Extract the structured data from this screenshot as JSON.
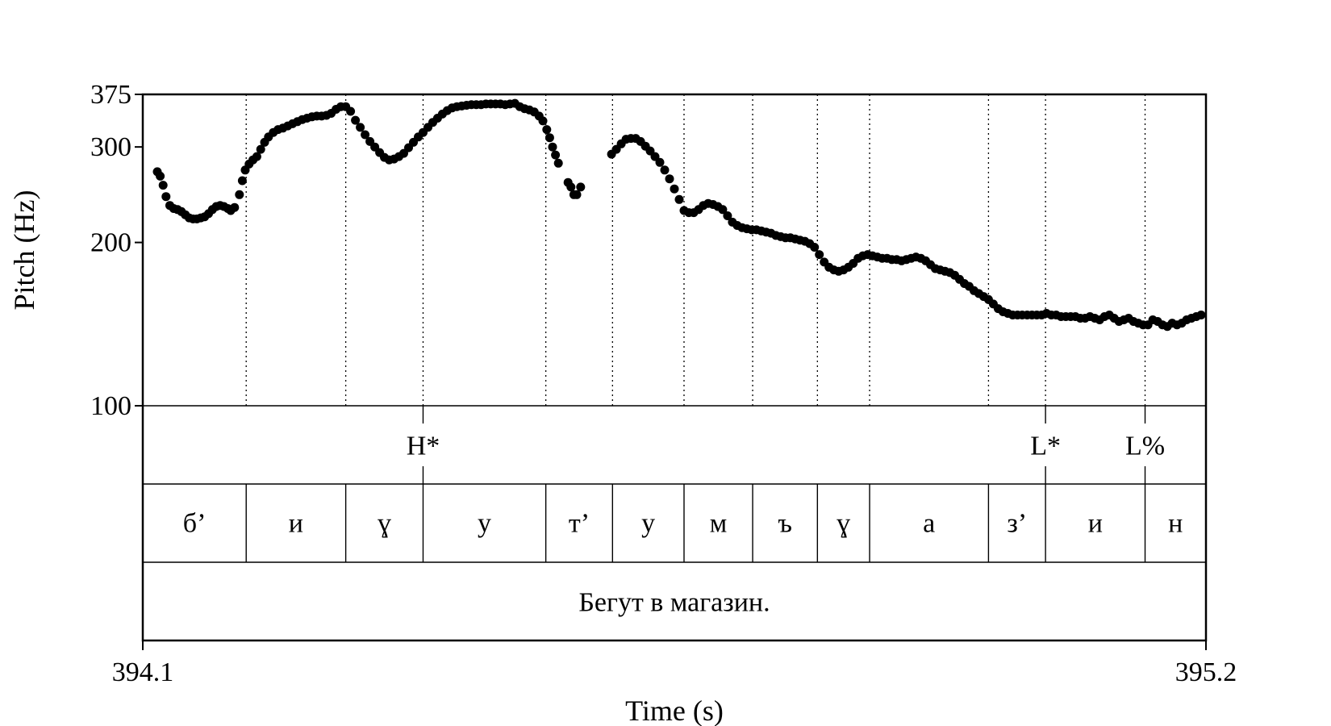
{
  "chart_data": {
    "type": "scatter",
    "xlabel": "Time (s)",
    "ylabel": "Pitch (Hz)",
    "xlim": [
      394.1,
      395.2
    ],
    "ylim": [
      100,
      375
    ],
    "y_scale": "log",
    "x_ticks": [
      "394.1",
      "395.2"
    ],
    "y_ticks": [
      {
        "value": 100,
        "label": "100"
      },
      {
        "value": 200,
        "label": "200"
      },
      {
        "value": 300,
        "label": "300"
      },
      {
        "value": 375,
        "label": "375"
      }
    ],
    "boundaries": [
      394.207,
      394.31,
      394.39,
      394.517,
      394.586,
      394.66,
      394.731,
      394.798,
      394.852,
      394.975,
      395.034,
      395.137
    ],
    "tones": [
      {
        "label": "H*",
        "time": 394.39
      },
      {
        "label": "L*",
        "time": 395.034
      },
      {
        "label": "L%",
        "time": 395.137
      }
    ],
    "phones": [
      {
        "label": "б’",
        "start": 394.1,
        "end": 394.207
      },
      {
        "label": "и",
        "start": 394.207,
        "end": 394.31
      },
      {
        "label": "ɣ",
        "start": 394.31,
        "end": 394.39
      },
      {
        "label": "у",
        "start": 394.39,
        "end": 394.517
      },
      {
        "label": "т’",
        "start": 394.517,
        "end": 394.586
      },
      {
        "label": "у",
        "start": 394.586,
        "end": 394.66
      },
      {
        "label": "м",
        "start": 394.66,
        "end": 394.731
      },
      {
        "label": "ъ",
        "start": 394.731,
        "end": 394.798
      },
      {
        "label": "ɣ",
        "start": 394.798,
        "end": 394.852
      },
      {
        "label": "а",
        "start": 394.852,
        "end": 394.975
      },
      {
        "label": "з’",
        "start": 394.975,
        "end": 395.034
      },
      {
        "label": "и",
        "start": 395.034,
        "end": 395.137
      },
      {
        "label": "н",
        "start": 395.137,
        "end": 395.2
      }
    ],
    "sentence": "Бегут в магазин.",
    "series": [
      {
        "points": [
          [
            394.115,
            270
          ],
          [
            394.118,
            265
          ],
          [
            394.121,
            255
          ],
          [
            394.124,
            243
          ],
          [
            394.128,
            234
          ],
          [
            394.132,
            231
          ],
          [
            394.136,
            230
          ],
          [
            394.14,
            228
          ],
          [
            394.144,
            225
          ],
          [
            394.148,
            222
          ],
          [
            394.152,
            221
          ],
          [
            394.156,
            221
          ],
          [
            394.16,
            222
          ],
          [
            394.164,
            223
          ],
          [
            394.168,
            226
          ],
          [
            394.172,
            230
          ],
          [
            394.176,
            233
          ],
          [
            394.18,
            234
          ],
          [
            394.184,
            233
          ],
          [
            394.188,
            231
          ],
          [
            394.191,
            229
          ],
          [
            394.195,
            232
          ],
          [
            394.2,
            245
          ],
          [
            394.203,
            260
          ],
          [
            394.206,
            272
          ],
          [
            394.21,
            279
          ],
          [
            394.214,
            284
          ],
          [
            394.218,
            288
          ],
          [
            394.222,
            297
          ],
          [
            394.226,
            306
          ],
          [
            394.23,
            313
          ],
          [
            394.235,
            319
          ],
          [
            394.24,
            323
          ],
          [
            394.245,
            325
          ],
          [
            394.25,
            328
          ],
          [
            394.255,
            331
          ],
          [
            394.26,
            334
          ],
          [
            394.265,
            337
          ],
          [
            394.27,
            339
          ],
          [
            394.275,
            341
          ],
          [
            394.28,
            342
          ],
          [
            394.285,
            342
          ],
          [
            394.29,
            343
          ],
          [
            394.295,
            346
          ],
          [
            394.3,
            352
          ],
          [
            394.305,
            356
          ],
          [
            394.31,
            356
          ],
          [
            394.315,
            349
          ],
          [
            394.32,
            336
          ],
          [
            394.325,
            326
          ],
          [
            394.33,
            316
          ],
          [
            394.335,
            307
          ],
          [
            394.34,
            300
          ],
          [
            394.345,
            293
          ],
          [
            394.35,
            287
          ],
          [
            394.355,
            284
          ],
          [
            394.36,
            285
          ],
          [
            394.365,
            288
          ],
          [
            394.37,
            292
          ],
          [
            394.375,
            299
          ],
          [
            394.38,
            306
          ],
          [
            394.385,
            313
          ],
          [
            394.39,
            319
          ],
          [
            394.395,
            326
          ],
          [
            394.4,
            333
          ],
          [
            394.405,
            339
          ],
          [
            394.41,
            345
          ],
          [
            394.415,
            350
          ],
          [
            394.42,
            354
          ],
          [
            394.425,
            356
          ],
          [
            394.43,
            357
          ],
          [
            394.435,
            358
          ],
          [
            394.44,
            359
          ],
          [
            394.445,
            359
          ],
          [
            394.45,
            359
          ],
          [
            394.455,
            360
          ],
          [
            394.46,
            360
          ],
          [
            394.465,
            360
          ],
          [
            394.47,
            360
          ],
          [
            394.475,
            359
          ],
          [
            394.48,
            360
          ],
          [
            394.485,
            361
          ],
          [
            394.49,
            356
          ],
          [
            394.495,
            353
          ],
          [
            394.5,
            351
          ],
          [
            394.505,
            348
          ],
          [
            394.51,
            342
          ],
          [
            394.514,
            335
          ],
          [
            394.518,
            323
          ],
          [
            394.521,
            312
          ],
          [
            394.524,
            300
          ],
          [
            394.527,
            290
          ],
          [
            394.53,
            280
          ],
          [
            394.54,
            258
          ],
          [
            394.543,
            253
          ],
          [
            394.546,
            245
          ],
          [
            394.549,
            245
          ],
          [
            394.553,
            253
          ],
          [
            394.585,
            291
          ],
          [
            394.59,
            297
          ],
          [
            394.595,
            304
          ],
          [
            394.6,
            310
          ],
          [
            394.605,
            311
          ],
          [
            394.61,
            311
          ],
          [
            394.615,
            307
          ],
          [
            394.62,
            301
          ],
          [
            394.625,
            295
          ],
          [
            394.63,
            288
          ],
          [
            394.635,
            281
          ],
          [
            394.64,
            272
          ],
          [
            394.645,
            262
          ],
          [
            394.65,
            251
          ],
          [
            394.655,
            240
          ],
          [
            394.66,
            229
          ],
          [
            394.665,
            227
          ],
          [
            394.67,
            227
          ],
          [
            394.675,
            230
          ],
          [
            394.68,
            234
          ],
          [
            394.685,
            236
          ],
          [
            394.69,
            235
          ],
          [
            394.695,
            233
          ],
          [
            394.7,
            230
          ],
          [
            394.705,
            224
          ],
          [
            394.71,
            218
          ],
          [
            394.715,
            215
          ],
          [
            394.72,
            213
          ],
          [
            394.725,
            212
          ],
          [
            394.73,
            211
          ],
          [
            394.735,
            211
          ],
          [
            394.74,
            210
          ],
          [
            394.745,
            209
          ],
          [
            394.75,
            208
          ],
          [
            394.755,
            206
          ],
          [
            394.76,
            205
          ],
          [
            394.765,
            204
          ],
          [
            394.77,
            204
          ],
          [
            394.775,
            203
          ],
          [
            394.78,
            202
          ],
          [
            394.785,
            201
          ],
          [
            394.79,
            199
          ],
          [
            394.795,
            196
          ],
          [
            394.8,
            190
          ],
          [
            394.805,
            184
          ],
          [
            394.81,
            180
          ],
          [
            394.815,
            178
          ],
          [
            394.82,
            177
          ],
          [
            394.825,
            178
          ],
          [
            394.83,
            180
          ],
          [
            394.835,
            183
          ],
          [
            394.84,
            187
          ],
          [
            394.845,
            189
          ],
          [
            394.85,
            190
          ],
          [
            394.855,
            189
          ],
          [
            394.86,
            188
          ],
          [
            394.865,
            187
          ],
          [
            394.87,
            187
          ],
          [
            394.875,
            186
          ],
          [
            394.88,
            186
          ],
          [
            394.885,
            185
          ],
          [
            394.89,
            186
          ],
          [
            394.895,
            187
          ],
          [
            394.9,
            188
          ],
          [
            394.905,
            187
          ],
          [
            394.91,
            185
          ],
          [
            394.915,
            182
          ],
          [
            394.92,
            179
          ],
          [
            394.925,
            178
          ],
          [
            394.93,
            177
          ],
          [
            394.935,
            176
          ],
          [
            394.94,
            174
          ],
          [
            394.945,
            171
          ],
          [
            394.95,
            168
          ],
          [
            394.955,
            166
          ],
          [
            394.96,
            163
          ],
          [
            394.965,
            161
          ],
          [
            394.97,
            159
          ],
          [
            394.975,
            157
          ],
          [
            394.98,
            154
          ],
          [
            394.985,
            151
          ],
          [
            394.99,
            149
          ],
          [
            394.995,
            148
          ],
          [
            395.0,
            147
          ],
          [
            395.005,
            147
          ],
          [
            395.01,
            147
          ],
          [
            395.015,
            147
          ],
          [
            395.02,
            147
          ],
          [
            395.025,
            147
          ],
          [
            395.03,
            147
          ],
          [
            395.035,
            148
          ],
          [
            395.04,
            147
          ],
          [
            395.045,
            147
          ],
          [
            395.05,
            146
          ],
          [
            395.055,
            146
          ],
          [
            395.06,
            146
          ],
          [
            395.065,
            146
          ],
          [
            395.07,
            145
          ],
          [
            395.075,
            145
          ],
          [
            395.08,
            146
          ],
          [
            395.085,
            145
          ],
          [
            395.09,
            144
          ],
          [
            395.095,
            146
          ],
          [
            395.1,
            147
          ],
          [
            395.105,
            145
          ],
          [
            395.11,
            143
          ],
          [
            395.115,
            144
          ],
          [
            395.12,
            145
          ],
          [
            395.125,
            143
          ],
          [
            395.13,
            142
          ],
          [
            395.135,
            141
          ],
          [
            395.14,
            141
          ],
          [
            395.145,
            144
          ],
          [
            395.15,
            143
          ],
          [
            395.155,
            141
          ],
          [
            395.16,
            140
          ],
          [
            395.165,
            142
          ],
          [
            395.17,
            141
          ],
          [
            395.175,
            142
          ],
          [
            395.18,
            144
          ],
          [
            395.185,
            145
          ],
          [
            395.19,
            146
          ],
          [
            395.195,
            147
          ]
        ]
      }
    ]
  }
}
